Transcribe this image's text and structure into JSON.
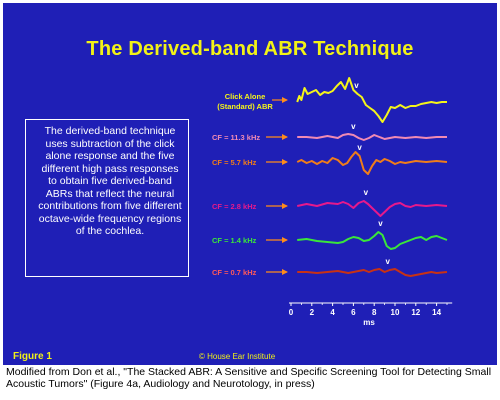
{
  "slide": {
    "title": "The Derived-band ABR Technique",
    "description": "The derived-band technique uses subtraction of the click alone response and the five different high pass responses to obtain five derived-band ABRs that reflect the neural contributions from five different octave-wide frequency regions of the cochlea.",
    "figure_label": "Figure 1",
    "copyright": "© House Ear Institute",
    "colors": {
      "background": "#1f1fb6",
      "title": "#f2f216",
      "arrow": "#ff8c1a"
    }
  },
  "caption": "Modified from Don et al., \"The Stacked ABR: A Sensitive and Specific Screening Tool for Detecting Small Acoustic Tumors\" (Figure 4a, Audiology and Neurotology, in press)",
  "chart_data": {
    "type": "line",
    "xlabel": "ms",
    "xlim": [
      0,
      15.5
    ],
    "x_ticks": [
      0,
      2,
      4,
      6,
      8,
      10,
      12,
      14
    ],
    "wave_marker": "v",
    "series": [
      {
        "name": "Click Alone (Standard) ABR",
        "label_line1": "Click Alone",
        "label_line2": "(Standard) ABR",
        "color": "#f4f41a",
        "label_color": "#f4f41a",
        "marker_x": 6.3,
        "x": [
          0.6,
          0.8,
          1.0,
          1.3,
          1.6,
          2.0,
          2.4,
          2.8,
          3.2,
          3.6,
          4.0,
          4.4,
          4.8,
          5.2,
          5.6,
          6.0,
          6.4,
          6.8,
          7.2,
          7.6,
          8.0,
          8.4,
          8.8,
          9.2,
          9.6,
          10.0,
          10.5,
          11.0,
          11.5,
          12.0,
          12.5,
          13.0,
          13.5,
          14.0,
          14.5,
          15.0
        ],
        "y": [
          0,
          -6,
          -2,
          -14,
          -8,
          -10,
          -12,
          -7,
          -10,
          -9,
          -11,
          -16,
          -20,
          -13,
          -24,
          -12,
          -8,
          -5,
          3,
          6,
          9,
          14,
          20,
          13,
          5,
          6,
          3,
          6,
          4,
          4,
          2,
          1,
          0,
          1,
          0,
          0
        ]
      },
      {
        "name": "CF = 11.3 kHz",
        "color": "#f08ab4",
        "label_color": "#f08ab4",
        "marker_x": 6.0,
        "x": [
          0.6,
          1.5,
          2.5,
          3.5,
          4.5,
          5.0,
          5.5,
          6.0,
          6.5,
          7.0,
          7.5,
          8.0,
          8.5,
          9.0,
          9.5,
          10.0,
          11.0,
          12.0,
          13.0,
          14.0,
          15.0
        ],
        "y": [
          0,
          0,
          1,
          -1,
          1,
          -2,
          -3,
          -2,
          1,
          3,
          1,
          -2,
          0,
          2,
          1,
          0,
          1,
          0,
          1,
          0,
          0
        ]
      },
      {
        "name": "CF = 5.7 kHz",
        "color": "#f07d1a",
        "label_color": "#f07d1a",
        "marker_x": 6.6,
        "x": [
          0.6,
          1.0,
          1.5,
          2.0,
          2.5,
          3.0,
          3.5,
          4.0,
          4.5,
          5.0,
          5.4,
          5.8,
          6.2,
          6.6,
          7.0,
          7.4,
          7.8,
          8.2,
          8.6,
          9.0,
          9.5,
          10.0,
          10.5,
          11.0,
          12.0,
          13.0,
          14.0,
          15.0
        ],
        "y": [
          0,
          -2,
          1,
          -1,
          2,
          -1,
          1,
          -4,
          -2,
          3,
          1,
          -5,
          -10,
          -6,
          8,
          12,
          4,
          -2,
          0,
          -3,
          -1,
          2,
          0,
          1,
          -1,
          0,
          -1,
          0
        ]
      },
      {
        "name": "CF = 2.8 kHz",
        "color": "#e6198c",
        "label_color": "#e6198c",
        "marker_x": 7.2,
        "x": [
          0.6,
          1.5,
          2.5,
          3.5,
          4.5,
          5.0,
          5.5,
          6.0,
          6.5,
          7.0,
          7.4,
          7.8,
          8.2,
          8.6,
          9.0,
          9.5,
          10.0,
          10.5,
          11.0,
          11.5,
          12.0,
          13.0,
          14.0,
          15.0
        ],
        "y": [
          0,
          -2,
          0,
          -3,
          -2,
          -4,
          -2,
          2,
          -3,
          -5,
          -2,
          2,
          6,
          10,
          6,
          1,
          -2,
          -3,
          0,
          1,
          -1,
          0,
          -1,
          0
        ]
      },
      {
        "name": "CF = 1.4 kHz",
        "color": "#3ae63a",
        "label_color": "#3ae63a",
        "marker_x": 8.6,
        "x": [
          0.6,
          1.5,
          2.5,
          3.5,
          4.5,
          5.0,
          5.5,
          6.0,
          6.5,
          7.0,
          7.5,
          8.0,
          8.4,
          8.8,
          9.2,
          9.6,
          10.0,
          10.5,
          11.0,
          11.5,
          12.0,
          12.5,
          13.0,
          13.5,
          14.0,
          14.5,
          15.0
        ],
        "y": [
          0,
          -1,
          1,
          2,
          3,
          2,
          -1,
          -3,
          -2,
          1,
          0,
          -4,
          -8,
          -5,
          6,
          9,
          8,
          4,
          2,
          0,
          -2,
          -3,
          0,
          -3,
          -4,
          -2,
          0
        ]
      },
      {
        "name": "CF = 0.7 kHz",
        "color": "#c83214",
        "label_color": "#ff5a5a",
        "marker_x": 9.3,
        "x": [
          0.6,
          1.5,
          2.5,
          3.5,
          4.5,
          5.0,
          5.5,
          6.0,
          6.5,
          7.0,
          7.5,
          8.0,
          8.5,
          9.0,
          9.5,
          10.0,
          10.5,
          11.0,
          11.5,
          12.0,
          12.5,
          13.0,
          13.5,
          14.0,
          15.0
        ],
        "y": [
          0,
          0,
          1,
          0,
          -1,
          0,
          1,
          0,
          -1,
          -2,
          0,
          -2,
          -3,
          0,
          -2,
          -3,
          0,
          3,
          4,
          3,
          2,
          1,
          0,
          1,
          0
        ]
      }
    ]
  }
}
